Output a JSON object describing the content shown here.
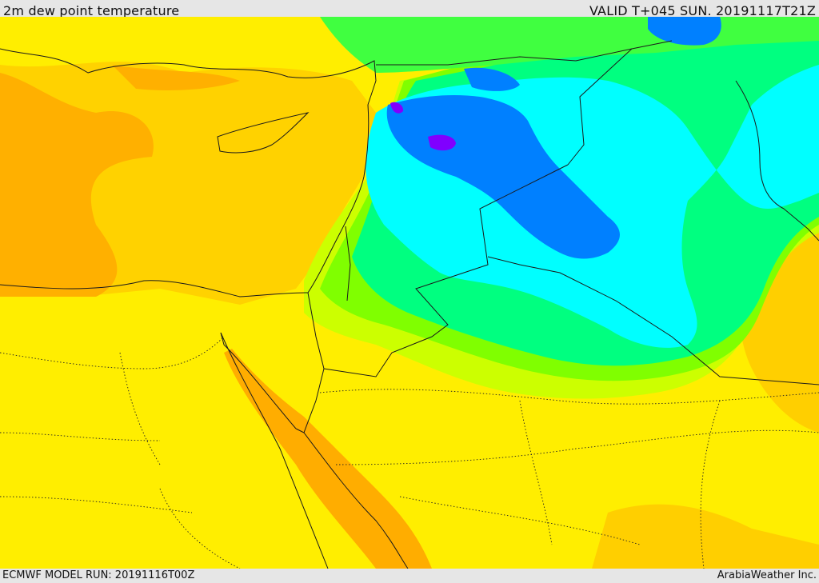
{
  "header": {
    "title": "2m dew point temperature",
    "valid": "VALID T+045 SUN. 20191117T21Z"
  },
  "footer": {
    "model_run": "ECMWF MODEL RUN: 20191116T00Z",
    "credit": "ArabiaWeather Inc."
  },
  "palette": {
    "orange": "#ffad00",
    "light_orange": "#ffd000",
    "yellow": "#ffff00",
    "yellow_green": "#ccff00",
    "light_green": "#80ff00",
    "green": "#00ff80",
    "cyan": "#00ffff",
    "blue": "#0080ff",
    "violet": "#8000ff"
  }
}
